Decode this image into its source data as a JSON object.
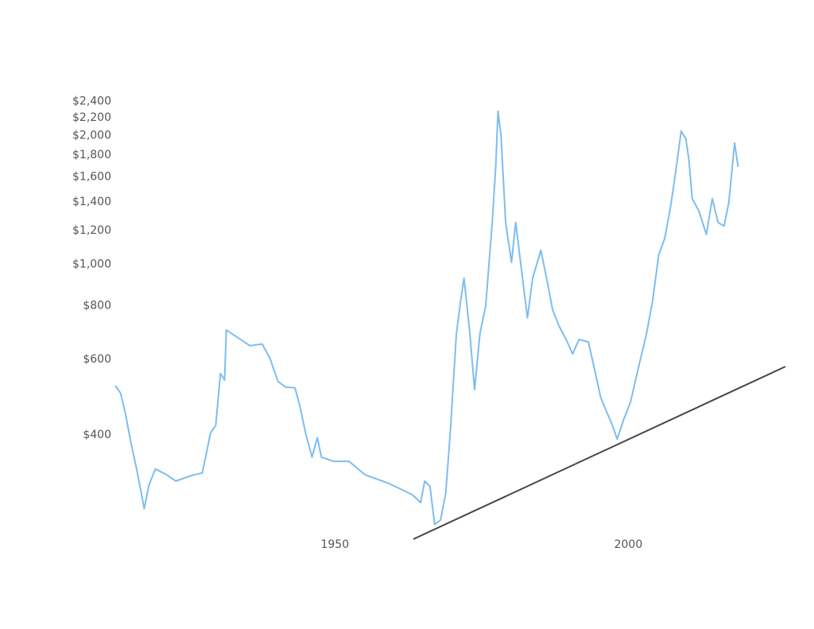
{
  "chart_data": {
    "type": "line",
    "log_scale_y": true,
    "color": "#7dbdf0",
    "x": [
      1912.6,
      1913.5,
      1914.3,
      1915.2,
      1916.2,
      1917.0,
      1917.5,
      1918.3,
      1919.4,
      1921.3,
      1922.9,
      1925.4,
      1927.4,
      1928.1,
      1928.8,
      1929.7,
      1930.5,
      1931.2,
      1931.5,
      1933.5,
      1935.5,
      1937.6,
      1938.9,
      1940.3,
      1941.6,
      1943.2,
      1944.0,
      1945.0,
      1946.1,
      1947.0,
      1947.7,
      1949.7,
      1952.4,
      1955.1,
      1959.2,
      1963.2,
      1964.6,
      1965.3,
      1966.2,
      1967.0,
      1968.0,
      1968.9,
      1969.7,
      1970.7,
      1971.4,
      1972.0,
      1973.0,
      1973.8,
      1974.7,
      1975.7,
      1976.8,
      1977.4,
      1977.8,
      1978.3,
      1979.1,
      1980.1,
      1980.8,
      1981.8,
      1982.8,
      1983.7,
      1985.1,
      1986.2,
      1987.1,
      1988.2,
      1989.6,
      1990.5,
      1991.6,
      1993.2,
      1994.1,
      1995.3,
      1996.4,
      1997.3,
      1998.1,
      1999.1,
      2000.4,
      2001.8,
      2003.1,
      2004.1,
      2005.2,
      2006.2,
      2007.2,
      2008.1,
      2009.0,
      2009.8,
      2010.3,
      2010.9,
      2012.0,
      2013.3,
      2014.3,
      2015.3,
      2016.3,
      2017.1,
      2018.1,
      2018.7
    ],
    "values": [
      521,
      500,
      449,
      386,
      333,
      293,
      269,
      305,
      333,
      323,
      312,
      321,
      326,
      362,
      404,
      421,
      556,
      537,
      703,
      674,
      646,
      652,
      605,
      533,
      517,
      515,
      469,
      404,
      355,
      394,
      355,
      347,
      347,
      323,
      308,
      290,
      278,
      312,
      303,
      247,
      253,
      293,
      412,
      689,
      817,
      929,
      689,
      510,
      689,
      800,
      1253,
      1690,
      2280,
      2004,
      1253,
      1011,
      1253,
      969,
      750,
      929,
      1079,
      909,
      783,
      718,
      659,
      618,
      668,
      659,
      580,
      489,
      449,
      421,
      391,
      430,
      479,
      580,
      689,
      817,
      1056,
      1150,
      1364,
      1655,
      2047,
      1963,
      1763,
      1424,
      1336,
      1175,
      1424,
      1253,
      1229,
      1390,
      1921,
      1690
    ],
    "xlim": [
      1910,
      2025
    ],
    "xticks": [
      1950,
      2000
    ],
    "ylim": [
      200,
      2600
    ],
    "yticks": [
      {
        "value": 400,
        "label": "$400"
      },
      {
        "value": 600,
        "label": "$600"
      },
      {
        "value": 800,
        "label": "$800"
      },
      {
        "value": 1000,
        "label": "$1,000"
      },
      {
        "value": 1200,
        "label": "$1,200"
      },
      {
        "value": 1400,
        "label": "$1,400"
      },
      {
        "value": 1600,
        "label": "$1,600"
      },
      {
        "value": 1800,
        "label": "$1,800"
      },
      {
        "value": 2000,
        "label": "$2,000"
      },
      {
        "value": 2200,
        "label": "$2,200"
      },
      {
        "value": 2400,
        "label": "$2,400"
      }
    ],
    "grid": false
  }
}
